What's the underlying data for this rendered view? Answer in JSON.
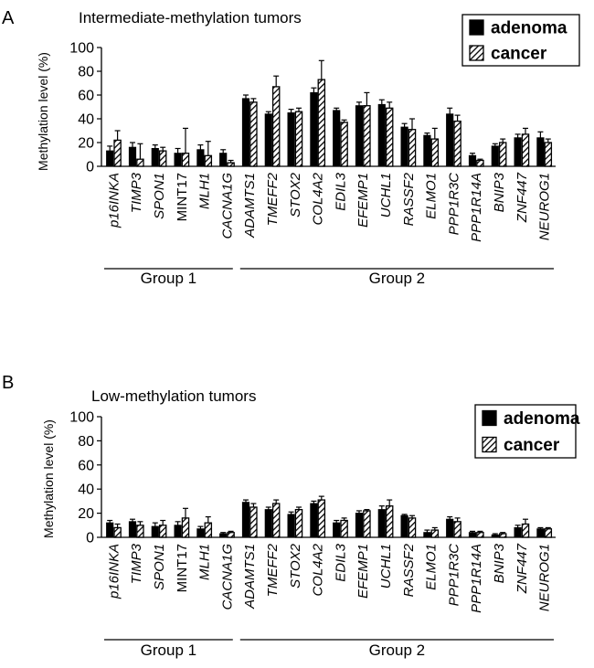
{
  "figure": {
    "colors": {
      "adenoma": "#000000",
      "cancer_hatch": "#000000",
      "background": "#ffffff"
    }
  },
  "chart_data": [
    {
      "type": "bar",
      "panel_label": "A",
      "title": "Intermediate-methylation tumors",
      "ylabel": "Methylation level (%)",
      "xlabel": "",
      "ylim": [
        0,
        100
      ],
      "yticks": [
        0,
        20,
        40,
        60,
        80,
        100
      ],
      "grid": false,
      "legend": {
        "position": "top-right",
        "entries": [
          "adenoma",
          "cancer"
        ]
      },
      "categories": [
        "p16INKA",
        "TIMP3",
        "SPON1",
        "MINT17",
        "MLH1",
        "CACNA1G",
        "ADAMTS1",
        "TMEFF2",
        "STOX2",
        "COL4A2",
        "EDIL3",
        "EFEMP1",
        "UCHL1",
        "RASSF2",
        "ELMO1",
        "PPP1R3C",
        "PPP1R14A",
        "BNIP3",
        "ZNF447",
        "NEUROG1"
      ],
      "italic_categories": [
        true,
        true,
        true,
        false,
        true,
        true,
        true,
        true,
        true,
        true,
        true,
        true,
        true,
        true,
        true,
        true,
        true,
        true,
        true,
        true
      ],
      "groups": [
        {
          "label": "Group 1",
          "from": 0,
          "to": 5
        },
        {
          "label": "Group 2",
          "from": 6,
          "to": 19
        }
      ],
      "series": [
        {
          "name": "adenoma",
          "values": [
            13,
            16,
            15,
            11,
            14,
            11,
            57,
            44,
            45,
            62,
            47,
            51,
            52,
            33,
            26,
            44,
            9,
            17,
            24,
            24
          ],
          "errors": [
            4,
            4,
            3,
            4,
            4,
            3,
            3,
            2,
            3,
            4,
            2,
            3,
            4,
            3,
            2,
            5,
            2,
            2,
            3,
            5
          ]
        },
        {
          "name": "cancer",
          "values": [
            22,
            6,
            13,
            11,
            9,
            3,
            54,
            67,
            46,
            73,
            37,
            51,
            49,
            31,
            23,
            38,
            5,
            20,
            27,
            20
          ],
          "errors": [
            8,
            13,
            3,
            21,
            12,
            2,
            3,
            9,
            3,
            16,
            2,
            11,
            5,
            9,
            9,
            5,
            1,
            3,
            5,
            3
          ]
        }
      ]
    },
    {
      "type": "bar",
      "panel_label": "B",
      "title": "Low-methylation tumors",
      "ylabel": "Methylation level (%)",
      "xlabel": "",
      "ylim": [
        0,
        100
      ],
      "yticks": [
        0,
        20,
        40,
        60,
        80,
        100
      ],
      "grid": false,
      "legend": {
        "position": "top-right",
        "entries": [
          "adenoma",
          "cancer"
        ]
      },
      "categories": [
        "p16INKA",
        "TIMP3",
        "SPON1",
        "MINT17",
        "MLH1",
        "CACNA1G",
        "ADAMTS1",
        "TMEFF2",
        "STOX2",
        "COL4A2",
        "EDIL3",
        "EFEMP1",
        "UCHL1",
        "RASSF2",
        "ELMO1",
        "PPP1R3C",
        "PPP1R14A",
        "BNIP3",
        "ZNF447",
        "NEUROG1"
      ],
      "italic_categories": [
        true,
        true,
        true,
        false,
        true,
        true,
        true,
        true,
        true,
        true,
        true,
        true,
        true,
        true,
        true,
        true,
        true,
        true,
        true,
        true
      ],
      "groups": [
        {
          "label": "Group 1",
          "from": 0,
          "to": 5
        },
        {
          "label": "Group 2",
          "from": 6,
          "to": 19
        }
      ],
      "series": [
        {
          "name": "adenoma",
          "values": [
            12,
            13,
            9,
            10,
            7,
            3,
            29,
            23,
            19,
            28,
            12,
            20,
            23,
            18,
            4,
            15,
            4,
            2,
            8,
            7
          ],
          "errors": [
            2,
            2,
            3,
            3,
            2,
            1,
            2,
            2,
            2,
            2,
            2,
            2,
            3,
            1,
            2,
            2,
            1,
            1,
            2,
            1
          ]
        },
        {
          "name": "cancer",
          "values": [
            8,
            10,
            10,
            16,
            12,
            4,
            25,
            28,
            23,
            31,
            14,
            22,
            26,
            16,
            6,
            13,
            4,
            3,
            11,
            7
          ],
          "errors": [
            3,
            3,
            4,
            8,
            5,
            1,
            3,
            3,
            2,
            3,
            2,
            1,
            5,
            2,
            2,
            3,
            1,
            1,
            4,
            1
          ]
        }
      ]
    }
  ]
}
